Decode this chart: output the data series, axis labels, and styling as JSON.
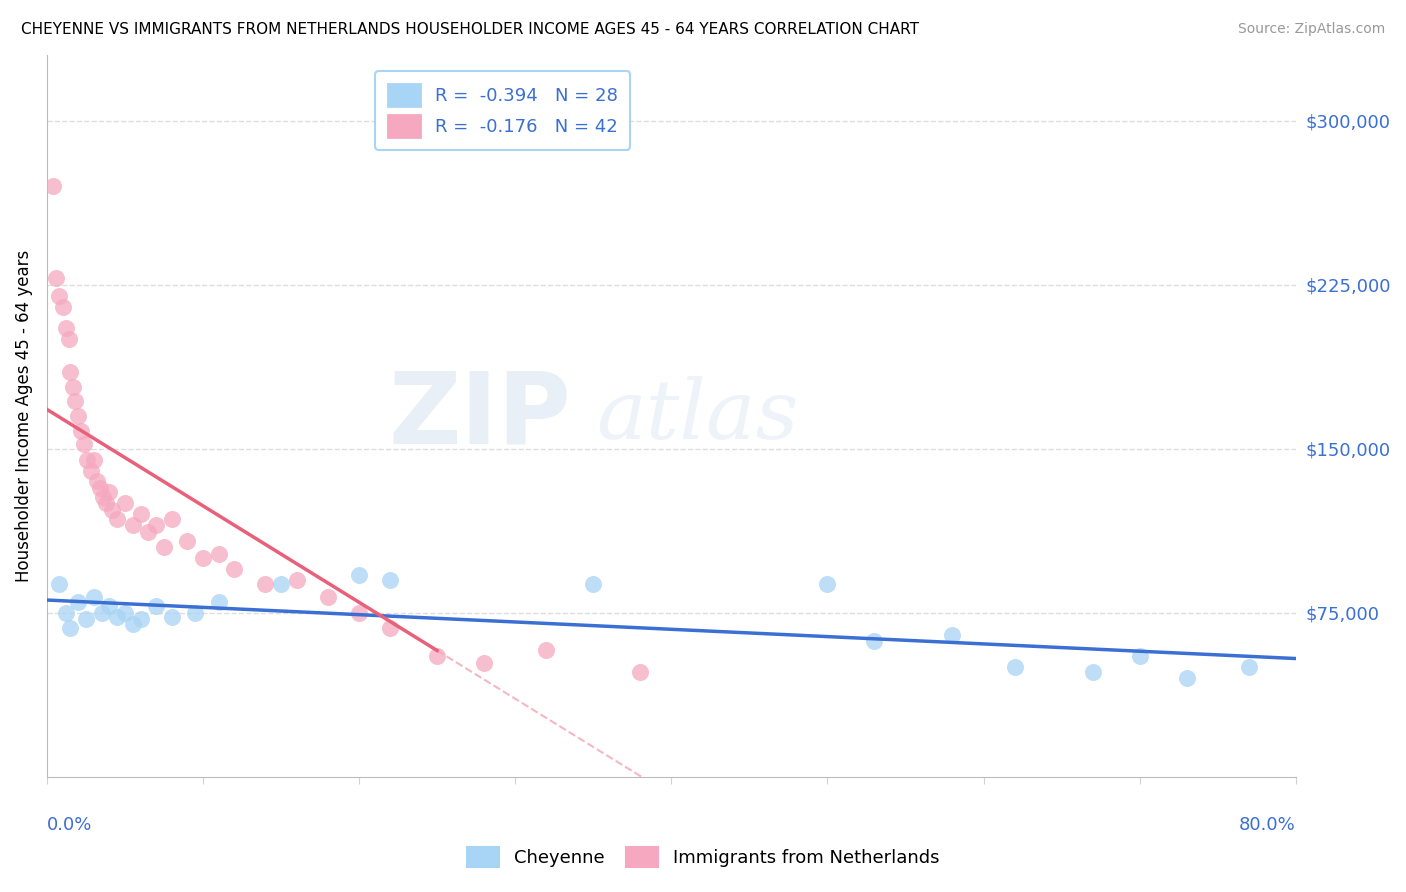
{
  "title": "CHEYENNE VS IMMIGRANTS FROM NETHERLANDS HOUSEHOLDER INCOME AGES 45 - 64 YEARS CORRELATION CHART",
  "source": "Source: ZipAtlas.com",
  "ylabel": "Householder Income Ages 45 - 64 years",
  "legend_entry1": "R =  -0.394   N = 28",
  "legend_entry2": "R =  -0.176   N = 42",
  "legend_label1": "Cheyenne",
  "legend_label2": "Immigrants from Netherlands",
  "yticks": [
    75000,
    150000,
    225000,
    300000
  ],
  "ytick_labels": [
    "$75,000",
    "$150,000",
    "$225,000",
    "$300,000"
  ],
  "color_blue": "#A8D4F5",
  "color_pink": "#F5A8C0",
  "color_blue_line": "#3B6FD4",
  "color_pink_line": "#E8607A",
  "xlim": [
    0,
    80
  ],
  "ylim": [
    0,
    330000
  ],
  "cheyenne_x": [
    0.8,
    1.2,
    1.5,
    2.0,
    2.5,
    3.0,
    3.5,
    4.0,
    4.5,
    5.0,
    5.5,
    6.0,
    7.0,
    8.0,
    9.5,
    11.0,
    15.0,
    20.0,
    22.0,
    35.0,
    50.0,
    53.0,
    58.0,
    62.0,
    67.0,
    70.0,
    73.0,
    77.0
  ],
  "cheyenne_y": [
    88000,
    75000,
    68000,
    80000,
    72000,
    82000,
    75000,
    78000,
    73000,
    75000,
    70000,
    72000,
    78000,
    73000,
    75000,
    80000,
    88000,
    92000,
    90000,
    88000,
    88000,
    62000,
    65000,
    50000,
    48000,
    55000,
    45000,
    50000
  ],
  "netherlands_x": [
    0.4,
    0.6,
    0.8,
    1.0,
    1.2,
    1.4,
    1.5,
    1.7,
    1.8,
    2.0,
    2.2,
    2.4,
    2.6,
    2.8,
    3.0,
    3.2,
    3.4,
    3.6,
    3.8,
    4.0,
    4.2,
    4.5,
    5.0,
    5.5,
    6.0,
    6.5,
    7.0,
    7.5,
    8.0,
    9.0,
    10.0,
    11.0,
    12.0,
    14.0,
    16.0,
    18.0,
    20.0,
    22.0,
    25.0,
    28.0,
    32.0,
    38.0
  ],
  "netherlands_y": [
    270000,
    228000,
    220000,
    215000,
    205000,
    200000,
    185000,
    178000,
    172000,
    165000,
    158000,
    152000,
    145000,
    140000,
    145000,
    135000,
    132000,
    128000,
    125000,
    130000,
    122000,
    118000,
    125000,
    115000,
    120000,
    112000,
    115000,
    105000,
    118000,
    108000,
    100000,
    102000,
    95000,
    88000,
    90000,
    82000,
    75000,
    68000,
    55000,
    52000,
    58000,
    48000
  ]
}
